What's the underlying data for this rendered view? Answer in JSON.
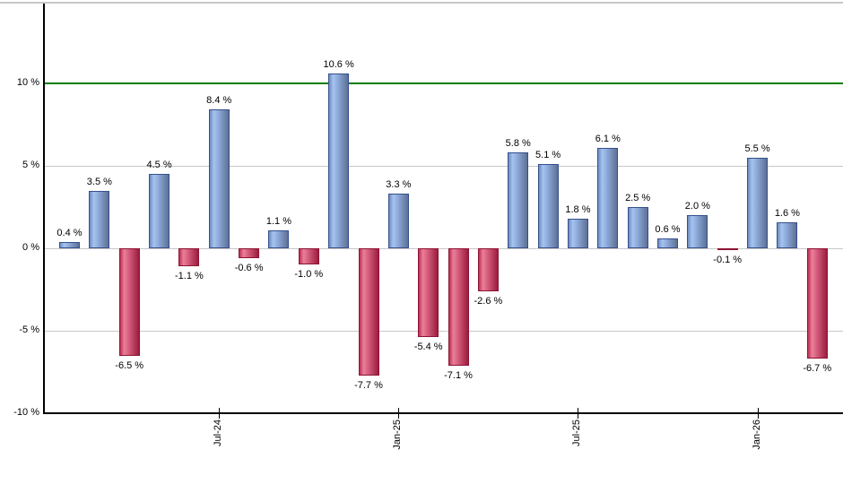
{
  "chart_data": {
    "type": "bar",
    "title": "",
    "xlabel": "",
    "ylabel": "",
    "unit": "%",
    "values": [
      0.4,
      3.5,
      -6.5,
      4.5,
      -1.1,
      8.4,
      -0.6,
      1.1,
      -1.0,
      10.6,
      -7.7,
      3.3,
      -5.4,
      -7.1,
      -2.6,
      5.8,
      5.1,
      1.8,
      6.1,
      2.5,
      0.6,
      2.0,
      -0.1,
      5.5,
      1.6,
      -6.7
    ],
    "bar_labels": [
      "0.4 %",
      "3.5 %",
      "-6.5 %",
      "4.5 %",
      "-1.1 %",
      "8.4 %",
      "-0.6 %",
      "1.1 %",
      "-1.0 %",
      "10.6 %",
      "-7.7 %",
      "3.3 %",
      "-5.4 %",
      "-7.1 %",
      "-2.6 %",
      "5.8 %",
      "5.1 %",
      "1.8 %",
      "6.1 %",
      "2.5 %",
      "0.6 %",
      "2.0 %",
      "-0.1 %",
      "5.5 %",
      "1.6 %",
      "-6.7 %"
    ],
    "x_tick_labels": [
      {
        "label": "Jul-24",
        "bar_index": 5
      },
      {
        "label": "Jan-25",
        "bar_index": 11
      },
      {
        "label": "Jul-25",
        "bar_index": 17
      },
      {
        "label": "Jan-26",
        "bar_index": 23
      }
    ],
    "y_ticks": [
      {
        "value": 10,
        "label": "10 %"
      },
      {
        "value": 5,
        "label": "5 %"
      },
      {
        "value": 0,
        "label": "0 %"
      },
      {
        "value": -5,
        "label": "-5 %"
      },
      {
        "value": -10,
        "label": "-10 %"
      }
    ],
    "ylim": [
      -10,
      15
    ],
    "grid": true,
    "legend": "none",
    "threshold_line": {
      "value": 10,
      "color": "#008000"
    },
    "colors": {
      "positive_edge": "#6d8cbf",
      "positive_highlight": "#a6c3f0",
      "positive_mid": "#8eabdb",
      "positive_dark": "#5d7095",
      "positive_border": "#36508c",
      "negative_edge": "#bd3055",
      "negative_highlight": "#ea8099",
      "negative_mid": "#d65f7e",
      "negative_dark": "#9b1c3e",
      "negative_border": "#8d1334",
      "gridline": "#c8c8c8",
      "axis": "#000000",
      "text": "#000000"
    }
  }
}
